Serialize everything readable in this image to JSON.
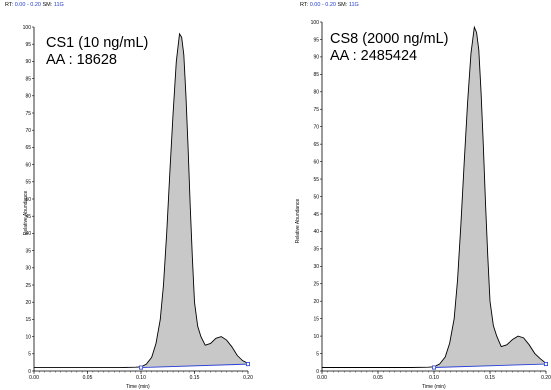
{
  "chart_data": [
    {
      "type": "area",
      "header": {
        "rt_label": "RT:",
        "rt_range": "0.00 - 0.20",
        "sm_label": "SM:",
        "sm_value": "11G"
      },
      "annotation": [
        "CS1 (10 ng/mL)",
        "AA : 18628"
      ],
      "ylabel": "Relative Abundance",
      "xlabel": "Time (min)",
      "xlim": [
        0,
        0.2
      ],
      "ylim": [
        0,
        100
      ],
      "xticks": [
        "0.00",
        "0.05",
        "0.10",
        "0.15",
        "0.20"
      ],
      "yticks": [
        "0",
        "5",
        "10",
        "15",
        "20",
        "25",
        "30",
        "35",
        "40",
        "45",
        "50",
        "55",
        "60",
        "65",
        "70",
        "75",
        "80",
        "85",
        "90",
        "95",
        "100"
      ],
      "integration": {
        "start": [
          0.1,
          1.0
        ],
        "end": [
          0.2,
          2.0
        ]
      },
      "series": [
        {
          "x": [
            0.0,
            0.02,
            0.04,
            0.06,
            0.08,
            0.095,
            0.1,
            0.105,
            0.11,
            0.114,
            0.118,
            0.121,
            0.124,
            0.127,
            0.13,
            0.133,
            0.136,
            0.138,
            0.14,
            0.142,
            0.144,
            0.146,
            0.148,
            0.15,
            0.153,
            0.156,
            0.16,
            0.165,
            0.17,
            0.175,
            0.18,
            0.185,
            0.19,
            0.195,
            0.2
          ],
          "y": [
            1.0,
            1.0,
            1.0,
            1.0,
            1.0,
            1.1,
            1.2,
            2.0,
            4.0,
            8.0,
            15.0,
            25.0,
            40.0,
            58.0,
            75.0,
            90.0,
            98.0,
            97.0,
            92.0,
            80.0,
            65.0,
            48.0,
            33.0,
            20.0,
            13.0,
            10.0,
            7.5,
            8.0,
            9.5,
            10.0,
            9.0,
            7.0,
            4.5,
            3.0,
            2.2
          ]
        }
      ]
    },
    {
      "type": "area",
      "header": {
        "rt_label": "RT:",
        "rt_range": "0.00 - 0.20",
        "sm_label": "SM:",
        "sm_value": "11G"
      },
      "annotation": [
        "CS8 (2000 ng/mL)",
        "AA : 2485424"
      ],
      "ylabel": "Relative Abundance",
      "xlabel": "Time (min)",
      "xlim": [
        0,
        0.2
      ],
      "ylim": [
        0,
        100
      ],
      "xticks": [
        "0.00",
        "0.05",
        "0.10",
        "0.15",
        "0.20"
      ],
      "yticks": [
        "0",
        "5",
        "10",
        "15",
        "20",
        "25",
        "30",
        "35",
        "40",
        "45",
        "50",
        "55",
        "60",
        "65",
        "70",
        "75",
        "80",
        "85",
        "90",
        "95",
        "100"
      ],
      "integration": {
        "start": [
          0.1,
          1.0
        ],
        "end": [
          0.2,
          2.0
        ]
      },
      "series": [
        {
          "x": [
            0.0,
            0.02,
            0.04,
            0.06,
            0.08,
            0.095,
            0.1,
            0.105,
            0.11,
            0.114,
            0.118,
            0.121,
            0.124,
            0.127,
            0.13,
            0.133,
            0.136,
            0.138,
            0.14,
            0.142,
            0.144,
            0.146,
            0.148,
            0.15,
            0.153,
            0.156,
            0.16,
            0.165,
            0.17,
            0.175,
            0.18,
            0.185,
            0.19,
            0.195,
            0.2
          ],
          "y": [
            1.0,
            1.0,
            1.0,
            1.0,
            1.0,
            1.1,
            1.2,
            2.0,
            4.0,
            8.0,
            15.0,
            26.0,
            42.0,
            60.0,
            77.0,
            91.0,
            98.5,
            97.0,
            92.0,
            80.0,
            65.0,
            48.0,
            33.0,
            20.0,
            13.0,
            10.0,
            7.0,
            7.5,
            9.0,
            10.0,
            9.5,
            7.5,
            5.0,
            3.5,
            2.2
          ]
        }
      ]
    }
  ]
}
